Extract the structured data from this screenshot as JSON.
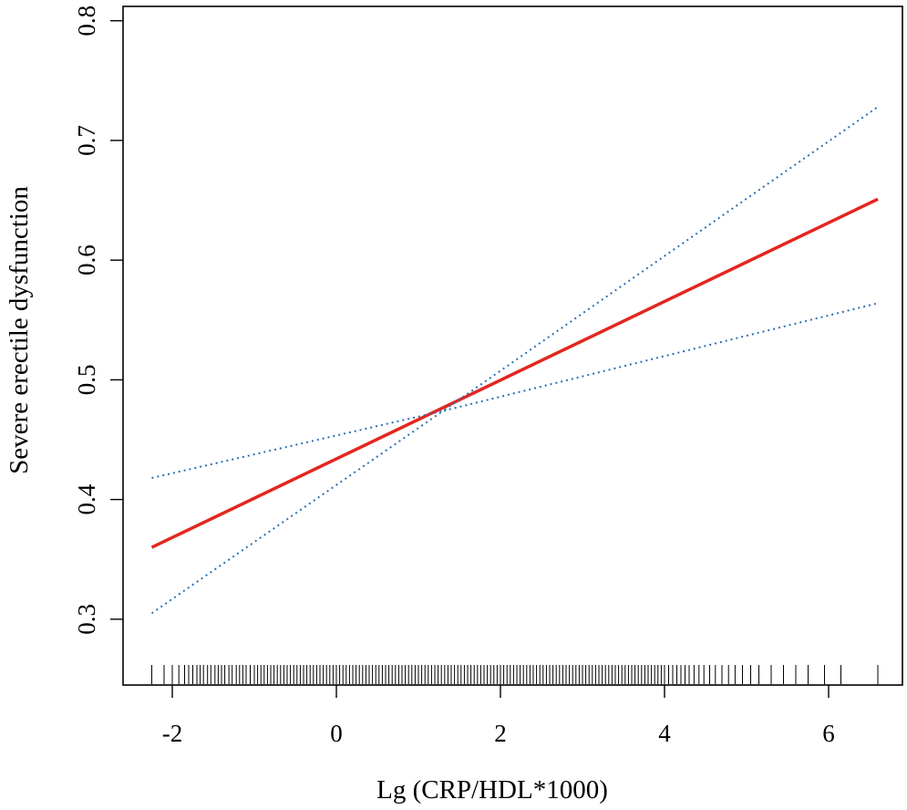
{
  "chart_data": {
    "type": "line",
    "title": "",
    "xlabel": "Lg (CRP/HDL*1000)",
    "ylabel": "Severe erectile dysfunction",
    "xlim": [
      -2.6,
      6.9
    ],
    "ylim": [
      0.245,
      0.812
    ],
    "x_ticks": [
      -2,
      0,
      2,
      4,
      6
    ],
    "x_tick_labels": [
      "-2",
      "0",
      "2",
      "4",
      "6"
    ],
    "y_ticks": [
      0.3,
      0.4,
      0.5,
      0.6,
      0.7,
      0.8
    ],
    "y_tick_labels": [
      "0.3",
      "0.4",
      "0.5",
      "0.6",
      "0.7",
      "0.8"
    ],
    "grid": false,
    "legend": "none",
    "series": [
      {
        "role": "estimate",
        "style": "solid",
        "color": "#e3261f",
        "x": [
          -2.25,
          6.6
        ],
        "y": [
          0.36,
          0.651
        ]
      },
      {
        "role": "upper-ci",
        "style": "dotted",
        "color": "#2a6fb5",
        "x": [
          -2.25,
          1.3,
          6.6
        ],
        "y": [
          0.418,
          0.474,
          0.728
        ]
      },
      {
        "role": "lower-ci",
        "style": "dotted",
        "color": "#2a6fb5",
        "x": [
          -2.25,
          1.3,
          6.6
        ],
        "y": [
          0.305,
          0.474,
          0.564
        ]
      }
    ],
    "rug": {
      "color": "#000000",
      "x": [
        -2.25,
        -2.1,
        -2.0,
        -1.92,
        -1.85,
        -1.8,
        -1.75,
        -1.7,
        -1.66,
        -1.62,
        -1.57,
        -1.53,
        -1.48,
        -1.44,
        -1.4,
        -1.36,
        -1.31,
        -1.27,
        -1.22,
        -1.18,
        -1.14,
        -1.1,
        -1.05,
        -1.0,
        -0.96,
        -0.92,
        -0.88,
        -0.84,
        -0.8,
        -0.76,
        -0.72,
        -0.68,
        -0.64,
        -0.6,
        -0.56,
        -0.52,
        -0.48,
        -0.44,
        -0.4,
        -0.36,
        -0.32,
        -0.28,
        -0.24,
        -0.2,
        -0.16,
        -0.12,
        -0.08,
        -0.04,
        0.0,
        0.04,
        0.08,
        0.12,
        0.16,
        0.2,
        0.24,
        0.28,
        0.32,
        0.36,
        0.4,
        0.44,
        0.48,
        0.52,
        0.56,
        0.6,
        0.64,
        0.68,
        0.72,
        0.76,
        0.8,
        0.84,
        0.88,
        0.92,
        0.96,
        1.0,
        1.04,
        1.08,
        1.12,
        1.16,
        1.2,
        1.24,
        1.28,
        1.32,
        1.36,
        1.4,
        1.44,
        1.48,
        1.52,
        1.56,
        1.6,
        1.64,
        1.68,
        1.72,
        1.76,
        1.8,
        1.84,
        1.88,
        1.92,
        1.96,
        2.0,
        2.04,
        2.08,
        2.12,
        2.16,
        2.2,
        2.24,
        2.28,
        2.32,
        2.36,
        2.4,
        2.44,
        2.48,
        2.52,
        2.56,
        2.6,
        2.64,
        2.68,
        2.72,
        2.76,
        2.8,
        2.84,
        2.88,
        2.92,
        2.96,
        3.0,
        3.04,
        3.08,
        3.12,
        3.16,
        3.2,
        3.24,
        3.28,
        3.32,
        3.36,
        3.4,
        3.44,
        3.48,
        3.52,
        3.56,
        3.6,
        3.64,
        3.68,
        3.72,
        3.76,
        3.8,
        3.84,
        3.88,
        3.92,
        3.96,
        4.0,
        4.05,
        4.1,
        4.15,
        4.2,
        4.25,
        4.3,
        4.36,
        4.42,
        4.48,
        4.55,
        4.62,
        4.7,
        4.78,
        4.86,
        4.95,
        5.05,
        5.15,
        5.3,
        5.45,
        5.6,
        5.75,
        5.95,
        6.15,
        6.6
      ]
    }
  }
}
